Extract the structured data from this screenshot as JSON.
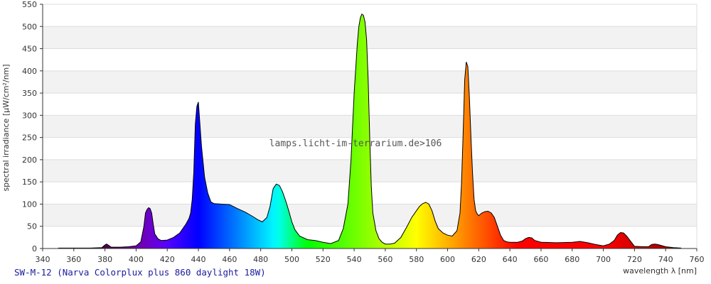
{
  "caption": "SW-M-12 (Narva Colorplux plus 860 daylight 18W)",
  "chart_data": {
    "type": "area",
    "xlabel": "wavelength λ [nm]",
    "ylabel": "spectral irradiance [µW/cm²/nm]",
    "watermark": "lamps.licht-im-terrarium.de>106",
    "xlim": [
      340,
      760
    ],
    "ylim": [
      0,
      550
    ],
    "x_ticks": [
      340,
      360,
      380,
      400,
      420,
      440,
      460,
      480,
      500,
      520,
      540,
      560,
      580,
      600,
      620,
      640,
      660,
      680,
      700,
      720,
      740,
      760
    ],
    "y_ticks": [
      0,
      50,
      100,
      150,
      200,
      250,
      300,
      350,
      400,
      450,
      500,
      550
    ],
    "grid": true,
    "colors": {
      "band": "#f2f2f2",
      "gridline": "#dddddd",
      "outline": "#000000",
      "caption": "#1a1aa0"
    },
    "series": [
      {
        "x": [
          350,
          360,
          370,
          378,
          380,
          381,
          382,
          384,
          386,
          390,
          395,
          400,
          403,
          405,
          406,
          407,
          408,
          409,
          410,
          411,
          412,
          414,
          416,
          420,
          424,
          428,
          432,
          434,
          435,
          436,
          437,
          438,
          439,
          440,
          442,
          444,
          446,
          448,
          450,
          455,
          460,
          465,
          470,
          475,
          478,
          481,
          484,
          486,
          488,
          490,
          492,
          494,
          496,
          498,
          500,
          502,
          505,
          510,
          515,
          520,
          525,
          530,
          533,
          536,
          538,
          540,
          542,
          543,
          544,
          545,
          546,
          547,
          548,
          549,
          550,
          551,
          552,
          554,
          556,
          558,
          560,
          563,
          566,
          570,
          574,
          577,
          580,
          582,
          584,
          586,
          588,
          590,
          592,
          594,
          597,
          600,
          603,
          606,
          608,
          609,
          610,
          611,
          612,
          613,
          614,
          615,
          616,
          617,
          618,
          619,
          620,
          622,
          624,
          626,
          628,
          630,
          632,
          634,
          636,
          638,
          640,
          645,
          648,
          650,
          652,
          654,
          656,
          660,
          670,
          680,
          685,
          690,
          695,
          700,
          704,
          707,
          709,
          711,
          713,
          715,
          718,
          720,
          725,
          729,
          731,
          733,
          735,
          740,
          745,
          750
        ],
        "y": [
          1,
          1,
          1,
          2,
          8,
          10,
          8,
          3,
          3,
          3,
          4,
          6,
          15,
          50,
          80,
          88,
          92,
          90,
          80,
          55,
          33,
          22,
          18,
          19,
          25,
          35,
          55,
          68,
          80,
          110,
          170,
          280,
          320,
          330,
          230,
          160,
          125,
          105,
          101,
          100,
          99,
          90,
          82,
          72,
          65,
          60,
          70,
          95,
          135,
          145,
          142,
          128,
          108,
          85,
          60,
          42,
          28,
          20,
          18,
          14,
          11,
          18,
          45,
          100,
          200,
          350,
          460,
          500,
          520,
          528,
          525,
          510,
          470,
          380,
          250,
          140,
          80,
          40,
          22,
          14,
          10,
          10,
          12,
          25,
          50,
          70,
          85,
          95,
          101,
          104,
          100,
          85,
          62,
          45,
          35,
          30,
          28,
          40,
          80,
          150,
          260,
          380,
          420,
          410,
          340,
          250,
          170,
          110,
          85,
          78,
          74,
          80,
          83,
          84,
          80,
          70,
          50,
          30,
          18,
          15,
          14,
          14,
          17,
          22,
          25,
          24,
          18,
          14,
          13,
          14,
          16,
          13,
          9,
          6,
          10,
          18,
          30,
          36,
          35,
          28,
          14,
          5,
          4,
          4,
          9,
          10,
          9,
          4,
          2,
          1
        ]
      }
    ]
  }
}
